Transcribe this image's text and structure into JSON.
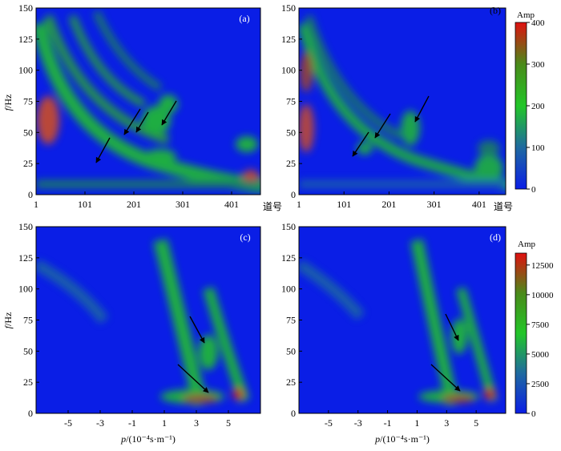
{
  "figure": {
    "units_fy": "f",
    "units_hz": "/Hz",
    "xlabel_trace": "道号",
    "xlabel_p_italic": "p",
    "xlabel_p_rest": "/(10⁻⁴s·m⁻¹)",
    "colorbar_title": "Amp"
  },
  "chart_data": [
    {
      "panel": "(a)",
      "type": "heatmap",
      "xlabel": "道号",
      "ylabel": "f /Hz",
      "x_ticks": [
        "1",
        "101",
        "201",
        "301",
        "401"
      ],
      "x_range": [
        1,
        460
      ],
      "y_ticks": [
        "0",
        "25",
        "50",
        "75",
        "100",
        "125",
        "150"
      ],
      "y_range": [
        0,
        150
      ],
      "colorbar": {
        "label": "Amp",
        "range": [
          0,
          400
        ],
        "ticks": [
          "0",
          "100",
          "200",
          "300",
          "400"
        ]
      },
      "arrows": 4
    },
    {
      "panel": "(b)",
      "type": "heatmap",
      "xlabel": "道号",
      "ylabel": "",
      "x_ticks": [
        "1",
        "101",
        "201",
        "301",
        "401"
      ],
      "x_range": [
        1,
        460
      ],
      "y_ticks": [
        "0",
        "25",
        "50",
        "75",
        "100",
        "125",
        "150"
      ],
      "y_range": [
        0,
        150
      ],
      "arrows": 3
    },
    {
      "panel": "(c)",
      "type": "heatmap",
      "xlabel": "p/(10⁻⁴s·m⁻¹)",
      "ylabel": "f /Hz",
      "x_ticks": [
        "-5",
        "-3",
        "-1",
        "1",
        "3",
        "5"
      ],
      "x_range": [
        -7,
        7
      ],
      "y_ticks": [
        "0",
        "25",
        "50",
        "75",
        "100",
        "125",
        "150"
      ],
      "y_range": [
        0,
        150
      ],
      "arrows": 2
    },
    {
      "panel": "(d)",
      "type": "heatmap",
      "xlabel": "p/(10⁻⁴s·m⁻¹)",
      "ylabel": "",
      "x_ticks": [
        "-5",
        "-3",
        "-1",
        "1",
        "3",
        "5"
      ],
      "x_range": [
        -7,
        7
      ],
      "y_ticks": [
        "0",
        "25",
        "50",
        "75",
        "100",
        "125",
        "150"
      ],
      "y_range": [
        0,
        150
      ],
      "colorbar": {
        "label": "Amp",
        "range": [
          0,
          13500
        ],
        "ticks": [
          "0",
          "2500",
          "5000",
          "7500",
          "10000",
          "12500"
        ]
      },
      "arrows": 2
    }
  ]
}
